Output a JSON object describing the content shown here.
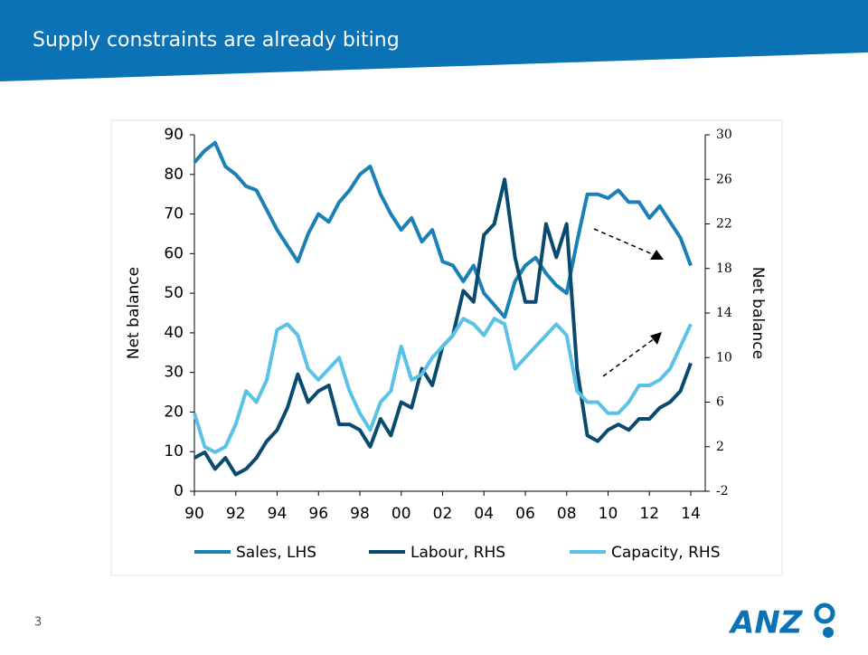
{
  "slide": {
    "title": "Supply constraints are already biting",
    "page_number": "3",
    "logo": "ANZ"
  },
  "chart_data": {
    "type": "line",
    "y_label": "Net balance",
    "y2_label": "Net balance",
    "x": [
      1990,
      1990.5,
      1991,
      1991.5,
      1992,
      1992.5,
      1993,
      1993.5,
      1994,
      1994.5,
      1995,
      1995.5,
      1996,
      1996.5,
      1997,
      1997.5,
      1998,
      1998.5,
      1999,
      1999.5,
      2000,
      2000.5,
      2001,
      2001.5,
      2002,
      2002.5,
      2003,
      2003.5,
      2004,
      2004.5,
      2005,
      2005.5,
      2006,
      2006.5,
      2007,
      2007.5,
      2008,
      2008.5,
      2009,
      2009.5,
      2010,
      2010.5,
      2011,
      2011.5,
      2012,
      2012.5,
      2013,
      2013.5,
      2014
    ],
    "series": [
      {
        "name": "Sales, LHS",
        "color": "#1a80b6",
        "axis": "y",
        "values": [
          83,
          86,
          88,
          82,
          80,
          77,
          76,
          71,
          66,
          62,
          58,
          65,
          70,
          68,
          73,
          76,
          80,
          82,
          75,
          70,
          66,
          69,
          63,
          66,
          58,
          57,
          53,
          57,
          50,
          47,
          44,
          53,
          57,
          59,
          55,
          52,
          50,
          63,
          75,
          75,
          74,
          76,
          73,
          73,
          69,
          72,
          68,
          64,
          57
        ]
      },
      {
        "name": "Labour, RHS",
        "color": "#0b4a6f",
        "axis": "y2",
        "values": [
          1,
          1.5,
          0,
          1,
          -0.5,
          0,
          1,
          2.5,
          3.5,
          5.5,
          8.5,
          6,
          7,
          7.5,
          4,
          4,
          3.5,
          2,
          4.5,
          3,
          6,
          5.5,
          9,
          7.5,
          11,
          12,
          16,
          15,
          21,
          22,
          26,
          19,
          15,
          15,
          22,
          19,
          22,
          9,
          3,
          2.5,
          3.5,
          4,
          3.5,
          4.5,
          4.5,
          5.5,
          6,
          7,
          9.5
        ]
      },
      {
        "name": "Capacity, RHS",
        "color": "#5bc2e7",
        "axis": "y2",
        "values": [
          5,
          2,
          1.5,
          2,
          4,
          7,
          6,
          8,
          12.5,
          13,
          12,
          9,
          8,
          9,
          10,
          7,
          5,
          3.5,
          6,
          7,
          11,
          8,
          8.5,
          10,
          11,
          12,
          13.5,
          13,
          12,
          13.5,
          13,
          9,
          10,
          11,
          12,
          13,
          12,
          7,
          6,
          6,
          5,
          5,
          6,
          7.5,
          7.5,
          8,
          9,
          11,
          13
        ]
      }
    ],
    "xlim": [
      1990,
      2014.7
    ],
    "xticks": [
      {
        "value": 1990,
        "label": "90"
      },
      {
        "value": 1992,
        "label": "92"
      },
      {
        "value": 1994,
        "label": "94"
      },
      {
        "value": 1996,
        "label": "96"
      },
      {
        "value": 1998,
        "label": "98"
      },
      {
        "value": 2000,
        "label": "00"
      },
      {
        "value": 2002,
        "label": "02"
      },
      {
        "value": 2004,
        "label": "04"
      },
      {
        "value": 2006,
        "label": "06"
      },
      {
        "value": 2008,
        "label": "08"
      },
      {
        "value": 2010,
        "label": "10"
      },
      {
        "value": 2012,
        "label": "12"
      },
      {
        "value": 2014,
        "label": "14"
      }
    ],
    "ylim": [
      0,
      90
    ],
    "yticks": [
      0,
      10,
      20,
      30,
      40,
      50,
      60,
      70,
      80,
      90
    ],
    "y2lim": [
      -2,
      30
    ],
    "y2ticks": [
      -2,
      2,
      6,
      10,
      14,
      18,
      22,
      26,
      30
    ],
    "legend": "bottom"
  }
}
